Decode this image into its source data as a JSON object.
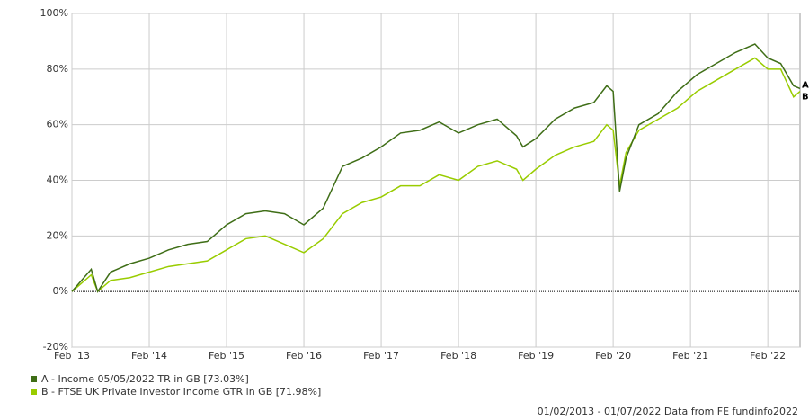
{
  "chart_data": {
    "type": "line",
    "x": [
      "2013-02",
      "2013-05",
      "2013-06",
      "2013-08",
      "2013-11",
      "2014-02",
      "2014-05",
      "2014-08",
      "2014-11",
      "2015-02",
      "2015-05",
      "2015-08",
      "2015-11",
      "2016-02",
      "2016-05",
      "2016-08",
      "2016-11",
      "2017-02",
      "2017-05",
      "2017-08",
      "2017-11",
      "2018-02",
      "2018-05",
      "2018-08",
      "2018-11",
      "2018-12",
      "2019-02",
      "2019-05",
      "2019-08",
      "2019-11",
      "2020-01",
      "2020-02",
      "2020-03",
      "2020-04",
      "2020-06",
      "2020-09",
      "2020-12",
      "2021-03",
      "2021-06",
      "2021-09",
      "2021-12",
      "2022-02",
      "2022-04",
      "2022-06",
      "2022-07"
    ],
    "series": [
      {
        "name": "A - Income 05/05/2022 TR in GB [73.03%]",
        "label": "A",
        "color": "#3f6e17",
        "values": [
          0,
          8,
          0,
          7,
          10,
          12,
          15,
          17,
          18,
          24,
          28,
          29,
          28,
          24,
          30,
          45,
          48,
          52,
          57,
          58,
          61,
          57,
          60,
          62,
          56,
          52,
          55,
          62,
          66,
          68,
          74,
          72,
          36,
          48,
          60,
          64,
          72,
          78,
          82,
          86,
          89,
          84,
          82,
          74,
          73
        ]
      },
      {
        "name": "B - FTSE UK Private Investor Income GTR in GB [71.98%]",
        "label": "B",
        "color": "#99cc00",
        "values": [
          0,
          6,
          0,
          4,
          5,
          7,
          9,
          10,
          11,
          15,
          19,
          20,
          17,
          14,
          19,
          28,
          32,
          34,
          38,
          38,
          42,
          40,
          45,
          47,
          44,
          40,
          44,
          49,
          52,
          54,
          60,
          58,
          38,
          50,
          58,
          62,
          66,
          72,
          76,
          80,
          84,
          80,
          80,
          70,
          72
        ]
      }
    ],
    "xlim": [
      "2013-02",
      "2022-07"
    ],
    "xticks": [
      {
        "value": "2013-02",
        "label": "Feb '13"
      },
      {
        "value": "2014-02",
        "label": "Feb '14"
      },
      {
        "value": "2015-02",
        "label": "Feb '15"
      },
      {
        "value": "2016-02",
        "label": "Feb '16"
      },
      {
        "value": "2017-02",
        "label": "Feb '17"
      },
      {
        "value": "2018-02",
        "label": "Feb '18"
      },
      {
        "value": "2019-02",
        "label": "Feb '19"
      },
      {
        "value": "2020-02",
        "label": "Feb '20"
      },
      {
        "value": "2021-02",
        "label": "Feb '21"
      },
      {
        "value": "2022-02",
        "label": "Feb '22"
      }
    ],
    "ylim": [
      -20,
      100
    ],
    "yticks": [
      {
        "value": -20,
        "label": "-20%"
      },
      {
        "value": 0,
        "label": "0%"
      },
      {
        "value": 20,
        "label": "20%"
      },
      {
        "value": 40,
        "label": "40%"
      },
      {
        "value": 60,
        "label": "60%"
      },
      {
        "value": 80,
        "label": "80%"
      },
      {
        "value": 100,
        "label": "100%"
      }
    ],
    "grid": true,
    "footer": "01/02/2013 - 01/07/2022 Data from FE fundinfo2022"
  }
}
